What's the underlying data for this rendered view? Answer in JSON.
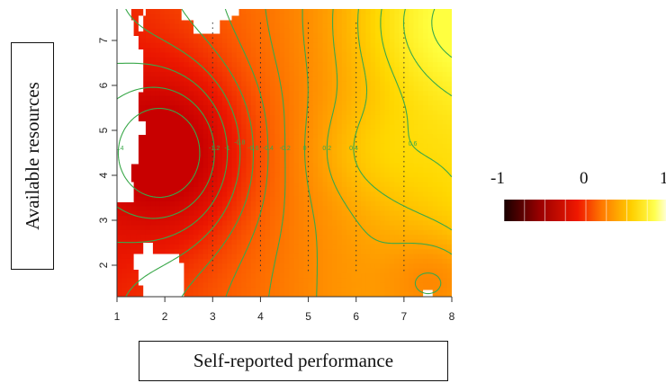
{
  "chart_data": {
    "type": "heatmap",
    "xlabel": "Self-reported performance",
    "ylabel": "Available resources",
    "xlim": [
      1,
      8
    ],
    "ylim": [
      1.3,
      7.7
    ],
    "x_ticks": [
      "1",
      "2",
      "3",
      "4",
      "5",
      "6",
      "7",
      "8"
    ],
    "y_ticks": [
      "2",
      "3",
      "4",
      "5",
      "6",
      "7"
    ],
    "colorbar": {
      "range": [
        -1,
        1
      ],
      "tick_labels": [
        "-1",
        "0",
        "1"
      ],
      "colors": [
        "#180000",
        "#cc0000",
        "#ff5a00",
        "#ffc800",
        "#ffff40",
        "#ffffe6"
      ]
    },
    "surface_minimum": {
      "x": 2.2,
      "y": 4.5,
      "value": -1.4
    },
    "surface_maximum": {
      "x": 7.8,
      "y": 7.5,
      "value": 1.0
    },
    "contour_levels": [
      -1.4,
      -1.2,
      -1.0,
      -0.8,
      -0.6,
      -0.4,
      -0.2,
      0,
      0.2,
      0.4,
      0.6,
      0.8,
      1.0
    ],
    "contour_labels": [
      "-1.4",
      "-1.2",
      "-1",
      "-0.8",
      "-0.6",
      "-0.4",
      "-0.2",
      "0",
      "0.2",
      "0.4",
      "0.6",
      "0.8",
      "1"
    ],
    "colors": {
      "contour": "#3aa84a",
      "missing_region": "#ffffff",
      "axis": "#333333"
    }
  }
}
